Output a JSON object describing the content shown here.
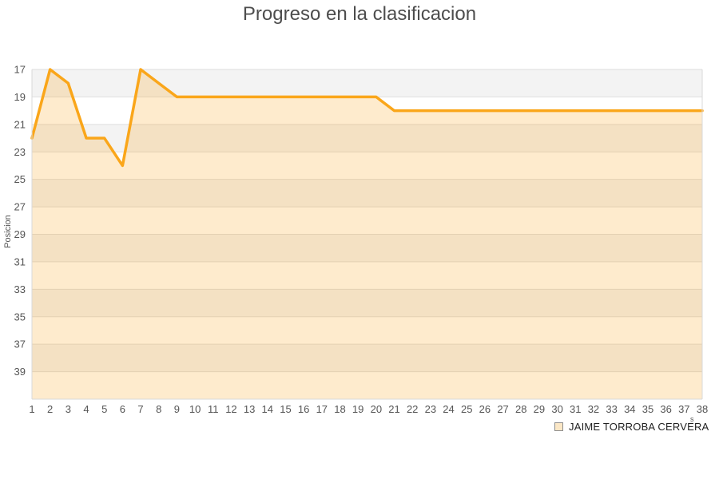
{
  "chart_data": {
    "type": "area",
    "title": "Progreso en la clasificacion",
    "xlabel": "",
    "ylabel": "Posicion",
    "x": [
      1,
      2,
      3,
      4,
      5,
      6,
      7,
      8,
      9,
      10,
      11,
      12,
      13,
      14,
      15,
      16,
      17,
      18,
      19,
      20,
      21,
      22,
      23,
      24,
      25,
      26,
      27,
      28,
      29,
      30,
      31,
      32,
      33,
      34,
      35,
      36,
      37,
      38
    ],
    "series": [
      {
        "name": "JAIME TORROBA CERVERA",
        "values": [
          22,
          17,
          18,
          22,
          22,
          24,
          17,
          18,
          19,
          19,
          19,
          19,
          19,
          19,
          19,
          19,
          19,
          19,
          19,
          19,
          20,
          20,
          20,
          20,
          20,
          20,
          20,
          20,
          20,
          20,
          20,
          20,
          20,
          20,
          20,
          20,
          20,
          20
        ]
      }
    ],
    "y_inverted": true,
    "ylim": [
      17,
      41
    ],
    "yticks": [
      17,
      19,
      21,
      23,
      25,
      27,
      29,
      31,
      33,
      35,
      37,
      39
    ],
    "grid": "horizontal-bands",
    "legend_position": "bottom-right"
  },
  "annotations": {
    "x_axis_remnant": "s"
  },
  "colors": {
    "line": "#FAA61A",
    "fill_opacity": 0.22,
    "band_dark": "#F3F3F3",
    "band_light": "#FFFFFF",
    "gridline": "#DEDEDE",
    "plot_border": "#D9D9D9",
    "title": "#4D4D4D",
    "tick": "#555555",
    "axis_label": "#555555",
    "legend_text": "#1F1F1F",
    "legend_marker_fill": "#FBE7C6",
    "legend_marker_border": "#8E8E8E"
  }
}
